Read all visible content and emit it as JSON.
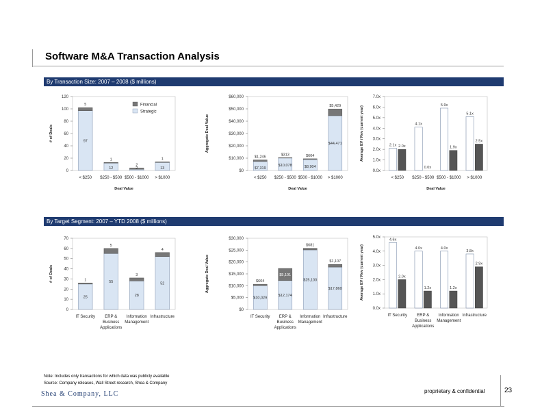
{
  "page": {
    "title": "Software M&A Transaction Analysis",
    "section1": "By Transaction Size: 2007 – 2008  ($ millions)",
    "section2": "By Target Segment: 2007 – YTD 2008  ($ millions)",
    "note": "Note: Includes only transactions for which data was publicly available",
    "source": "Source: Company releases, Wall Street research, Shea & Company",
    "logo": "Shea & Company, LLC",
    "confidential": "proprietary & confidential",
    "page_number": "23"
  },
  "colors": {
    "strategic": "#d9e5f3",
    "financial": "#777777",
    "ev": "#555555",
    "header": "#1f3b70"
  },
  "chart_data": [
    {
      "type": "bar",
      "stacked": true,
      "categories": [
        "< $250",
        "$250 - $500",
        "$500 - $1000",
        "> $1000"
      ],
      "series": [
        {
          "name": "Strategic",
          "values": [
            97,
            12,
            2,
            13
          ]
        },
        {
          "name": "Financial",
          "values": [
            5,
            1,
            2,
            1
          ]
        }
      ],
      "ylabel": "# of Deals",
      "xlabel": "Deal Value",
      "ylim": [
        0,
        120
      ],
      "yticks": [
        "0",
        "20",
        "40",
        "60",
        "80",
        "100",
        "120"
      ],
      "legend": [
        "Financial",
        "Strategic"
      ],
      "legend_position": "top-right",
      "data_labels": [
        [
          "97",
          "12",
          "2",
          "13"
        ],
        [
          "5",
          "1",
          "2",
          "1"
        ]
      ]
    },
    {
      "type": "bar",
      "stacked": true,
      "categories": [
        "< $250",
        "$250 - $500",
        "$500 - $1000",
        "> $1000"
      ],
      "series": [
        {
          "name": "Strategic",
          "values": [
            7319,
            10078,
            8904,
            44471
          ]
        },
        {
          "name": "Financial",
          "values": [
            1246,
            313,
            604,
            5429
          ]
        }
      ],
      "ylabel": "Aggregate Deal Value",
      "xlabel": "Deal Value",
      "ylim": [
        0,
        60000
      ],
      "yticks": [
        "$0",
        "$10,000",
        "$20,000",
        "$30,000",
        "$40,000",
        "$50,000",
        "$60,000"
      ],
      "data_labels": [
        [
          "$7,319",
          "$10,078",
          "$8,904",
          "$44,471"
        ],
        [
          "$1,246",
          "$313",
          "$604",
          "$5,429"
        ]
      ]
    },
    {
      "type": "bar",
      "categories": [
        "< $250",
        "$250 - $500",
        "$500 - $1000",
        "> $1000"
      ],
      "series": [
        {
          "name": "Strategic",
          "values": [
            2.1,
            4.1,
            5.9,
            5.1
          ]
        },
        {
          "name": "Financial",
          "values": [
            2.0,
            0.0,
            1.9,
            2.5
          ]
        }
      ],
      "ylabel": "Average EV / Rev (current year)",
      "xlabel": "Deal Value",
      "ylim": [
        0,
        7
      ],
      "yticks": [
        "0.0x",
        "1.0x",
        "2.0x",
        "3.0x",
        "4.0x",
        "5.0x",
        "6.0x",
        "7.0x"
      ],
      "data_labels": [
        [
          "2.1x",
          "4.1x",
          "5.9x",
          "5.1x"
        ],
        [
          "2.0x",
          "0.0x",
          "1.9x",
          "2.5x"
        ]
      ]
    },
    {
      "type": "bar",
      "stacked": true,
      "categories": [
        "IT Security",
        "ERP & Business Applications",
        "Information Management",
        "Infrastructure"
      ],
      "category_lines": [
        [
          "IT Security"
        ],
        [
          "ERP &",
          "Business",
          "Applications"
        ],
        [
          "Information",
          "Management"
        ],
        [
          "Infrastructure"
        ]
      ],
      "series": [
        {
          "name": "Strategic",
          "values": [
            25,
            55,
            28,
            52
          ]
        },
        {
          "name": "Financial",
          "values": [
            1,
            5,
            3,
            4
          ]
        }
      ],
      "ylabel": "# of Deals",
      "ylim": [
        0,
        70
      ],
      "yticks": [
        "0",
        "10",
        "20",
        "30",
        "40",
        "50",
        "60",
        "70"
      ],
      "data_labels": [
        [
          "25",
          "55",
          "28",
          "52"
        ],
        [
          "1",
          "5",
          "3",
          "4"
        ]
      ]
    },
    {
      "type": "bar",
      "stacked": true,
      "categories": [
        "IT Security",
        "ERP & Business Applications",
        "Information Management",
        "Infrastructure"
      ],
      "category_lines": [
        [
          "IT Security"
        ],
        [
          "ERP &",
          "Business",
          "Applications"
        ],
        [
          "Information",
          "Management"
        ],
        [
          "Infrastructure"
        ]
      ],
      "series": [
        {
          "name": "Strategic",
          "values": [
            10029,
            12174,
            25100,
            17860
          ]
        },
        {
          "name": "Financial",
          "values": [
            604,
            5101,
            681,
            1107
          ]
        }
      ],
      "ylabel": "Aggregate Deal Value",
      "ylim": [
        0,
        30000
      ],
      "yticks": [
        "$0",
        "$5,000",
        "$10,000",
        "$15,000",
        "$20,000",
        "$25,000",
        "$30,000"
      ],
      "data_labels": [
        [
          "$10,029",
          "$12,174",
          "$25,100",
          "$17,860"
        ],
        [
          "$604",
          "$5,101",
          "$681",
          "$1,107"
        ]
      ]
    },
    {
      "type": "bar",
      "categories": [
        "IT Security",
        "ERP & Business Applications",
        "Information Management",
        "Infrastructure"
      ],
      "category_lines": [
        [
          "IT Security"
        ],
        [
          "ERP &",
          "Business",
          "Applications"
        ],
        [
          "Information",
          "Management"
        ],
        [
          "Infrastructure"
        ]
      ],
      "series": [
        {
          "name": "Strategic",
          "values": [
            4.6,
            4.0,
            4.0,
            3.8
          ]
        },
        {
          "name": "Financial",
          "values": [
            2.0,
            1.2,
            1.2,
            2.9
          ]
        }
      ],
      "ylabel": "Average EV / Rev (current year)",
      "ylim": [
        0,
        5
      ],
      "yticks": [
        "0.0x",
        "1.0x",
        "2.0x",
        "3.0x",
        "4.0x",
        "5.0x"
      ],
      "data_labels": [
        [
          "4.6x",
          "4.0x",
          "4.0x",
          "3.8x"
        ],
        [
          "2.0x",
          "1.2x",
          "1.2x",
          "2.9x"
        ]
      ]
    }
  ]
}
